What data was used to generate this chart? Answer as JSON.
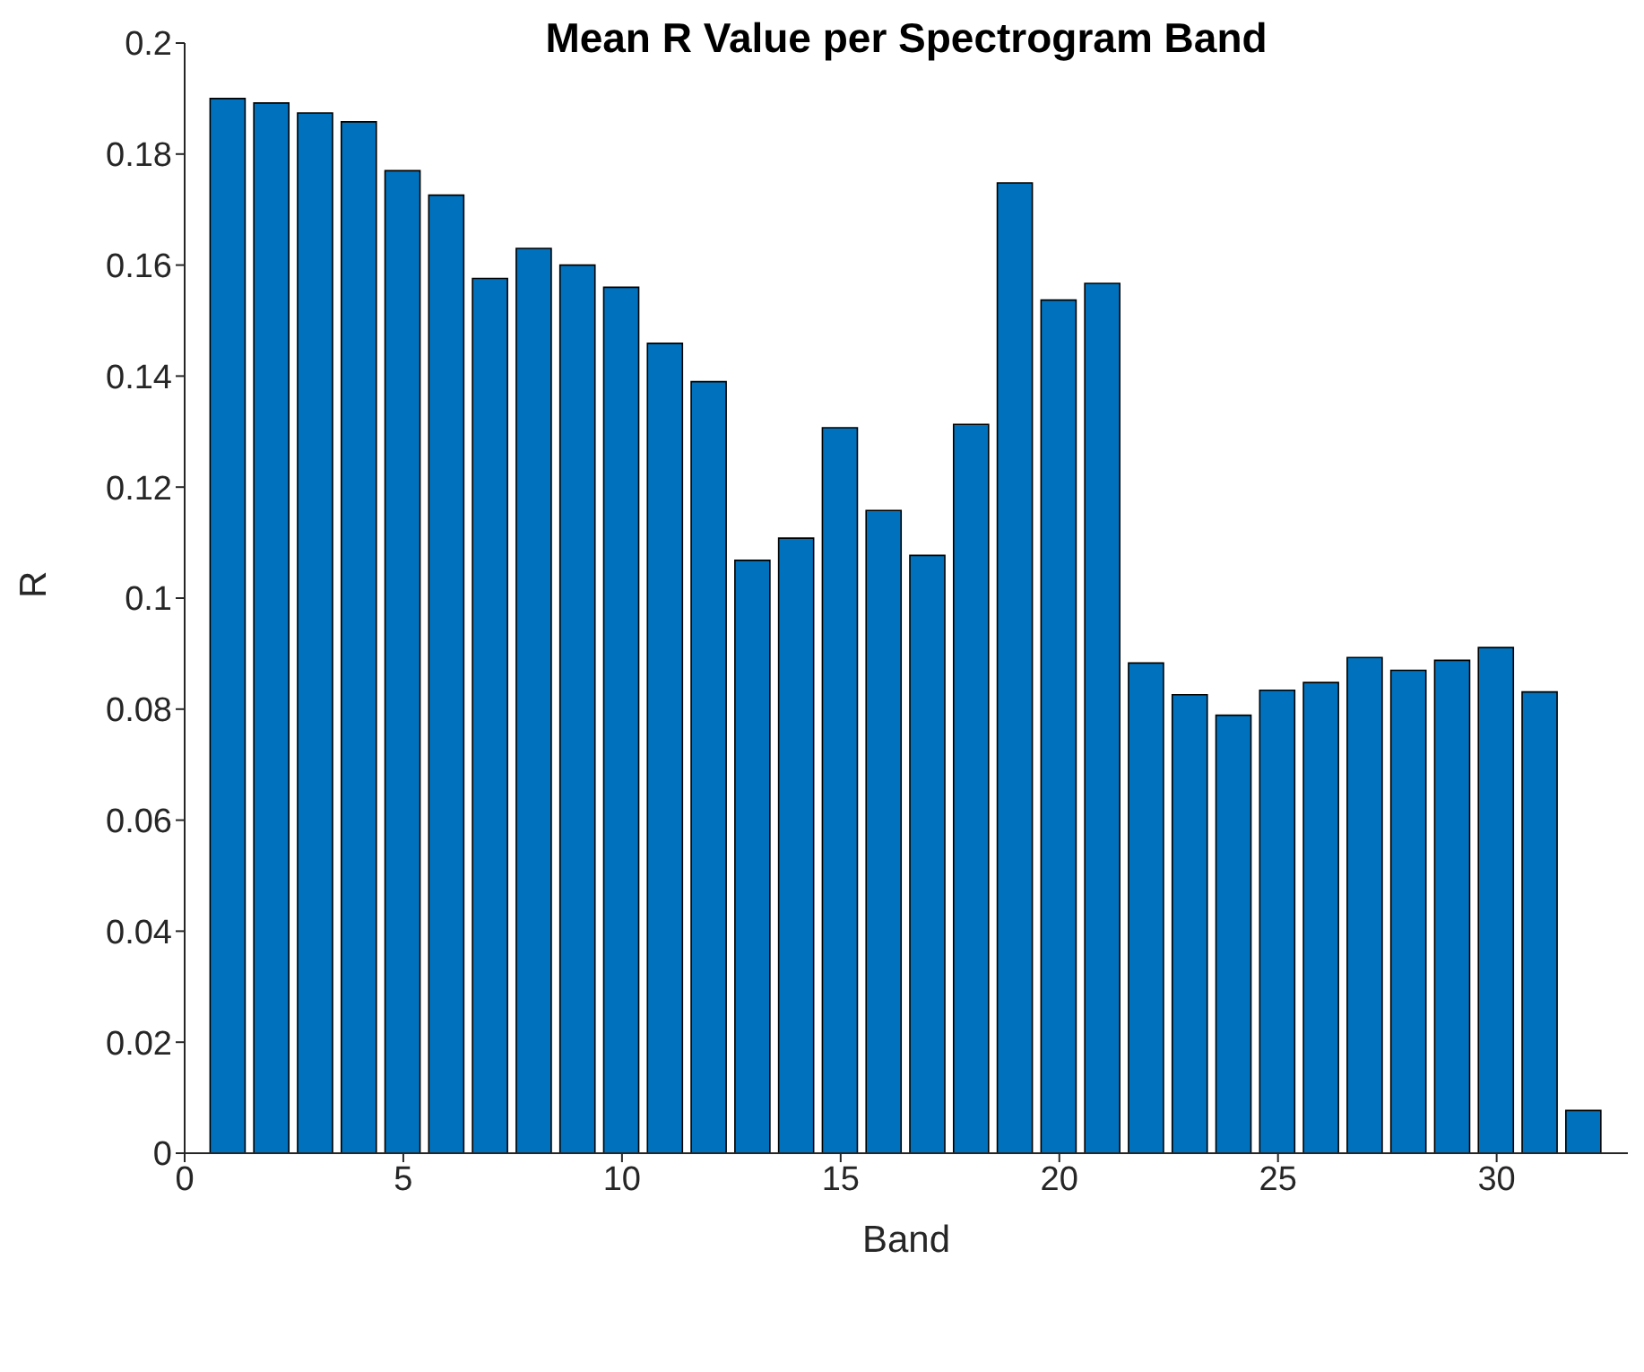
{
  "chart_data": {
    "type": "bar",
    "title": "Mean R Value per Spectrogram Band",
    "xlabel": "Band",
    "ylabel": "R",
    "x": [
      1,
      2,
      3,
      4,
      5,
      6,
      7,
      8,
      9,
      10,
      11,
      12,
      13,
      14,
      15,
      16,
      17,
      18,
      19,
      20,
      21,
      22,
      23,
      24,
      25,
      26,
      27,
      28,
      29,
      30,
      31,
      32
    ],
    "values": [
      0.19,
      0.1892,
      0.1874,
      0.1858,
      0.177,
      0.1726,
      0.1576,
      0.163,
      0.16,
      0.156,
      0.1459,
      0.139,
      0.1068,
      0.1108,
      0.1307,
      0.1158,
      0.1077,
      0.1313,
      0.1748,
      0.1537,
      0.1567,
      0.0883,
      0.0826,
      0.0789,
      0.0834,
      0.0848,
      0.0893,
      0.087,
      0.0888,
      0.0911,
      0.0831,
      0.0077
    ],
    "color": "#0072bd",
    "xlim": [
      0,
      33
    ],
    "xticks": [
      0,
      5,
      10,
      15,
      20,
      25,
      30
    ],
    "ylim": [
      0,
      0.2
    ],
    "yticks": [
      0,
      0.02,
      0.04,
      0.06,
      0.08,
      0.1,
      0.12,
      0.14,
      0.16,
      0.18,
      0.2
    ],
    "grid": false,
    "legend": false
  }
}
